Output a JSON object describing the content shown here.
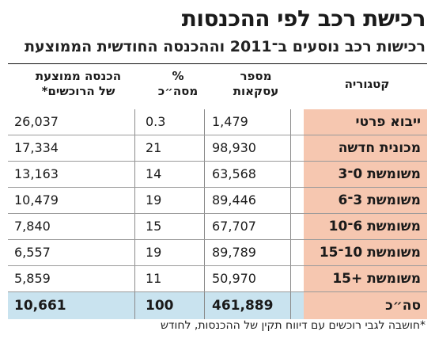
{
  "title": "רכישת רכב לפי ההכנסות",
  "subtitle": "רכישות רכב נוסעים ב־2011 וההכנסה החודשית הממוצעת",
  "columns": {
    "category": "קטגוריה",
    "count_line1": "מספר",
    "count_line2": "עסקאות",
    "share_line1": "%",
    "share_line2": "מסה״כ",
    "income_line1": "הכנסה ממוצעת",
    "income_line2": "של הרוכשים*"
  },
  "chart_data": {
    "type": "table",
    "title": "רכישת רכב לפי ההכנסות",
    "subtitle": "רכישות רכב נוסעים ב־2011 וההכנסה החודשית הממוצעת",
    "columns": [
      "קטגוריה",
      "מספר עסקאות",
      "% מסה״כ",
      "הכנסה ממוצעת של הרוכשים*"
    ],
    "rows": [
      {
        "category": "ייבוא פרטי",
        "count": "1,479",
        "share": "0.3",
        "income": "26,037"
      },
      {
        "category": "מכונית חדשה",
        "count": "98,930",
        "share": "21",
        "income": "17,334"
      },
      {
        "category": "משומשת 0־3",
        "count": "63,568",
        "share": "14",
        "income": "13,163"
      },
      {
        "category": "משומשת 3־6",
        "count": "89,446",
        "share": "19",
        "income": "10,479"
      },
      {
        "category": "משומשת 6־10",
        "count": "67,707",
        "share": "15",
        "income": "7,840"
      },
      {
        "category": "משומשת 10־15",
        "count": "89,789",
        "share": "19",
        "income": "6,557"
      },
      {
        "category": "משומשת +15",
        "count": "50,970",
        "share": "11",
        "income": "5,859"
      }
    ],
    "total": {
      "category": "סה״כ",
      "count": "461,889",
      "share": "100",
      "income": "10,661"
    }
  },
  "footnote": "*חושבה לגבי רוכשים עם דיווח תקין של ההכנסות, לחודש",
  "colors": {
    "category_bg": "#f6c7b0",
    "total_bg": "#c9e3ef"
  }
}
